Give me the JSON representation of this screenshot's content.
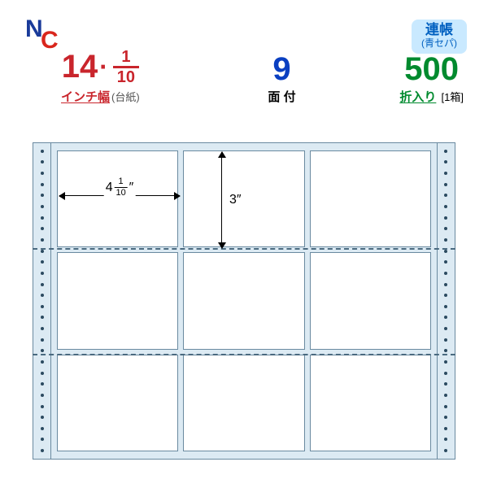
{
  "logo": {
    "n": "N",
    "c": "C"
  },
  "tag": {
    "line1": "連帳",
    "line2": "(青セパ)"
  },
  "specs": {
    "width": {
      "int": "14",
      "frac_num": "1",
      "frac_den": "10",
      "label_ul": "インチ幅",
      "label_aux": "(台紙)",
      "color": "red"
    },
    "faces": {
      "int": "9",
      "label_plain": "面 付",
      "color": "blue"
    },
    "sheets": {
      "int": "500",
      "label_ul": "折入り",
      "label_aux": "[1箱]",
      "color": "green"
    }
  },
  "diagram": {
    "cols": 3,
    "rows": 3,
    "tractor_holes": 28,
    "perforations": 2,
    "cell_w": {
      "int": "4",
      "frac_num": "1",
      "frac_den": "10",
      "unit": "″"
    },
    "cell_h": {
      "value": "3″"
    },
    "colors": {
      "sheet_bg": "#dceaf3",
      "border": "#6a8aa0",
      "hole": "#2b4a60"
    }
  }
}
